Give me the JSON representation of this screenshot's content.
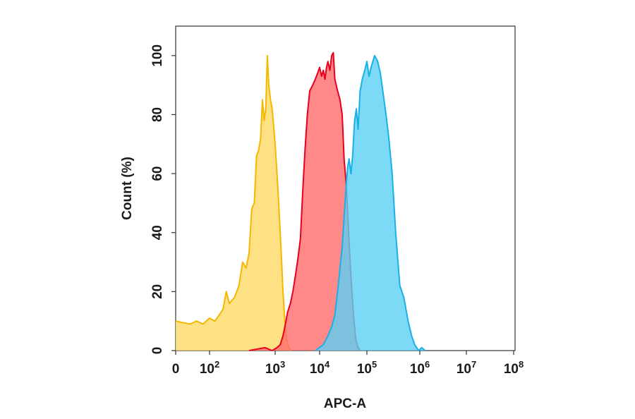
{
  "chart_data": {
    "type": "area",
    "title": "",
    "xlabel": "APC-A",
    "ylabel": "Count (%)",
    "x_scale": "biexponential",
    "xlim": [
      0,
      100000000
    ],
    "ylim": [
      0,
      110
    ],
    "x_ticks": [
      {
        "value": 0,
        "base": "0",
        "exp": ""
      },
      {
        "value": 100,
        "base": "10",
        "exp": "2"
      },
      {
        "value": 1000,
        "base": "10",
        "exp": "3"
      },
      {
        "value": 10000,
        "base": "10",
        "exp": "4"
      },
      {
        "value": 100000,
        "base": "10",
        "exp": "5"
      },
      {
        "value": 1000000,
        "base": "10",
        "exp": "6"
      },
      {
        "value": 10000000,
        "base": "10",
        "exp": "7"
      },
      {
        "value": 100000000,
        "base": "10",
        "exp": "8"
      }
    ],
    "y_ticks": [
      "0",
      "20",
      "40",
      "60",
      "80",
      "100"
    ],
    "grid": false,
    "legend": "none",
    "series": [
      {
        "color": "#ffd966",
        "edge_color": "#f5b800",
        "points": [
          [
            0,
            10
          ],
          [
            40,
            9
          ],
          [
            60,
            10
          ],
          [
            80,
            9
          ],
          [
            100,
            11
          ],
          [
            120,
            10
          ],
          [
            140,
            12
          ],
          [
            160,
            14
          ],
          [
            180,
            20
          ],
          [
            200,
            16
          ],
          [
            240,
            18
          ],
          [
            280,
            22
          ],
          [
            320,
            30
          ],
          [
            360,
            28
          ],
          [
            400,
            33
          ],
          [
            440,
            48
          ],
          [
            480,
            50
          ],
          [
            520,
            66
          ],
          [
            560,
            68
          ],
          [
            600,
            72
          ],
          [
            640,
            85
          ],
          [
            680,
            78
          ],
          [
            720,
            82
          ],
          [
            760,
            100
          ],
          [
            800,
            90
          ],
          [
            850,
            85
          ],
          [
            900,
            82
          ],
          [
            1000,
            70
          ],
          [
            1100,
            60
          ],
          [
            1200,
            50
          ],
          [
            1350,
            35
          ],
          [
            1500,
            20
          ],
          [
            1650,
            10
          ],
          [
            1800,
            4
          ],
          [
            2000,
            1
          ],
          [
            2300,
            0
          ]
        ]
      },
      {
        "color": "#ff6b6b",
        "edge_color": "#e8001c",
        "points": [
          [
            400,
            0
          ],
          [
            700,
            1
          ],
          [
            900,
            0
          ],
          [
            1100,
            1
          ],
          [
            1300,
            2
          ],
          [
            1500,
            5
          ],
          [
            1700,
            9
          ],
          [
            1900,
            13
          ],
          [
            2200,
            16
          ],
          [
            2500,
            20
          ],
          [
            2900,
            26
          ],
          [
            3300,
            32
          ],
          [
            3700,
            38
          ],
          [
            4200,
            55
          ],
          [
            4700,
            68
          ],
          [
            5300,
            80
          ],
          [
            6000,
            88
          ],
          [
            7000,
            90
          ],
          [
            8000,
            92
          ],
          [
            9000,
            94
          ],
          [
            10000,
            96
          ],
          [
            11000,
            93
          ],
          [
            12000,
            95
          ],
          [
            13000,
            92
          ],
          [
            14000,
            96
          ],
          [
            15000,
            98
          ],
          [
            16500,
            95
          ],
          [
            18000,
            100
          ],
          [
            19500,
            101
          ],
          [
            21000,
            92
          ],
          [
            24000,
            88
          ],
          [
            27000,
            85
          ],
          [
            30000,
            80
          ],
          [
            33000,
            65
          ],
          [
            37000,
            55
          ],
          [
            41000,
            40
          ],
          [
            46000,
            25
          ],
          [
            52000,
            12
          ],
          [
            58000,
            4
          ],
          [
            65000,
            1
          ],
          [
            72000,
            0
          ]
        ]
      },
      {
        "color": "#5bd1f5",
        "edge_color": "#1ab0e8",
        "points": [
          [
            8000,
            0
          ],
          [
            12000,
            2
          ],
          [
            15000,
            5
          ],
          [
            18000,
            8
          ],
          [
            21000,
            12
          ],
          [
            24000,
            20
          ],
          [
            27000,
            28
          ],
          [
            30000,
            35
          ],
          [
            33000,
            45
          ],
          [
            36000,
            55
          ],
          [
            39000,
            62
          ],
          [
            42000,
            65
          ],
          [
            46000,
            60
          ],
          [
            50000,
            66
          ],
          [
            55000,
            78
          ],
          [
            60000,
            82
          ],
          [
            65000,
            75
          ],
          [
            72000,
            88
          ],
          [
            80000,
            92
          ],
          [
            90000,
            95
          ],
          [
            100000,
            98
          ],
          [
            110000,
            93
          ],
          [
            120000,
            96
          ],
          [
            140000,
            100
          ],
          [
            160000,
            98
          ],
          [
            180000,
            94
          ],
          [
            200000,
            88
          ],
          [
            230000,
            80
          ],
          [
            260000,
            72
          ],
          [
            300000,
            60
          ],
          [
            350000,
            40
          ],
          [
            420000,
            22
          ],
          [
            500000,
            18
          ],
          [
            600000,
            10
          ],
          [
            700000,
            5
          ],
          [
            800000,
            2
          ],
          [
            950000,
            0
          ],
          [
            1100000,
            1
          ],
          [
            1300000,
            0
          ]
        ]
      }
    ]
  }
}
